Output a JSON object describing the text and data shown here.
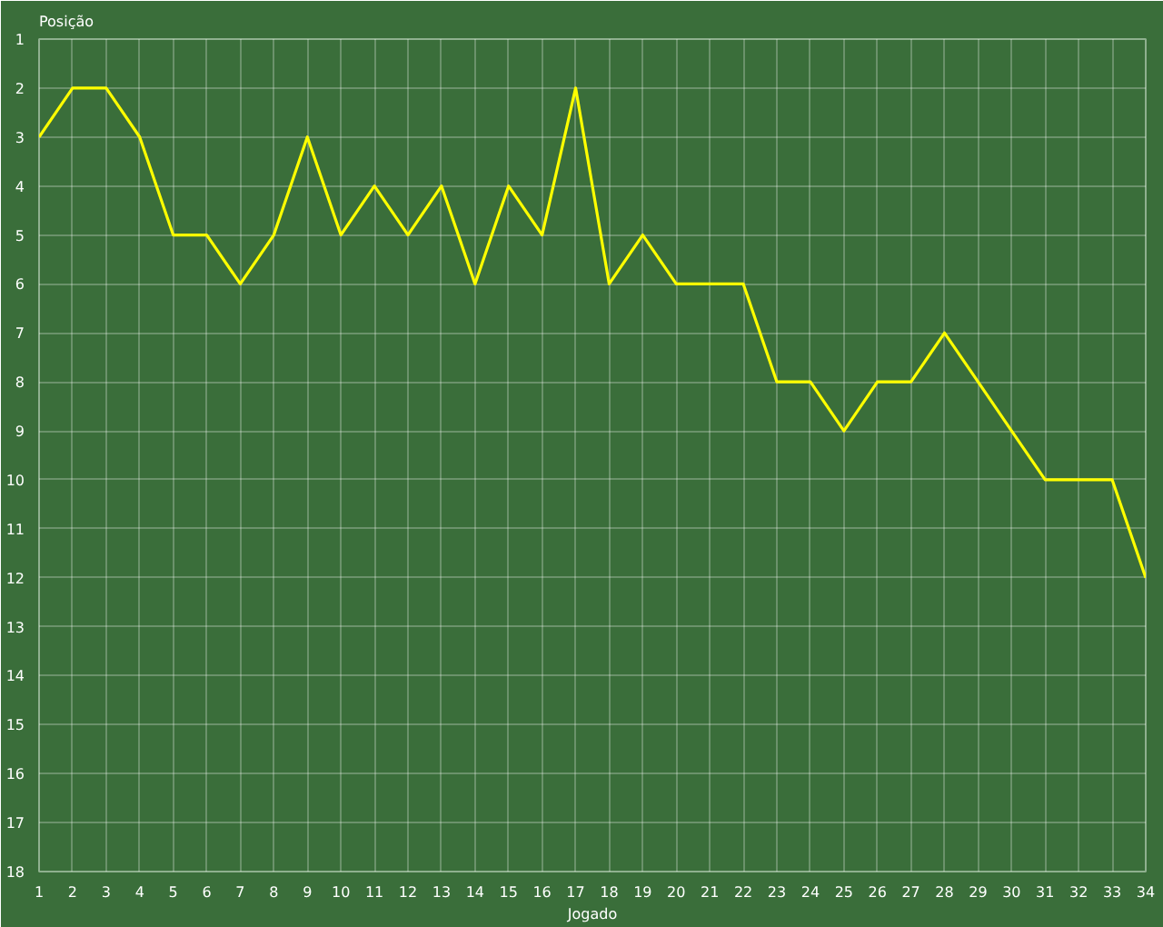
{
  "chart_data": {
    "type": "line",
    "xlabel": "Jogado",
    "ylabel": "Posição",
    "x": [
      1,
      2,
      3,
      4,
      5,
      6,
      7,
      8,
      9,
      10,
      11,
      12,
      13,
      14,
      15,
      16,
      17,
      18,
      19,
      20,
      21,
      22,
      23,
      24,
      25,
      26,
      27,
      28,
      29,
      30,
      31,
      32,
      33,
      34
    ],
    "series": [
      {
        "color": "#ffff00",
        "values": [
          3,
          2,
          2,
          3,
          5,
          5,
          6,
          5,
          3,
          5,
          4,
          5,
          4,
          6,
          4,
          5,
          2,
          6,
          5,
          6,
          6,
          6,
          8,
          8,
          9,
          8,
          8,
          7,
          8,
          9,
          10,
          10,
          10,
          12
        ]
      }
    ],
    "xlim": [
      1,
      34
    ],
    "ylim": [
      18,
      1
    ],
    "xticks": [
      1,
      2,
      3,
      4,
      5,
      6,
      7,
      8,
      9,
      10,
      11,
      12,
      13,
      14,
      15,
      16,
      17,
      18,
      19,
      20,
      21,
      22,
      23,
      24,
      25,
      26,
      27,
      28,
      29,
      30,
      31,
      32,
      33,
      34
    ],
    "yticks": [
      1,
      2,
      3,
      4,
      5,
      6,
      7,
      8,
      9,
      10,
      11,
      12,
      13,
      14,
      15,
      16,
      17,
      18
    ],
    "grid": true,
    "marker": "none",
    "line_style": "solid"
  }
}
